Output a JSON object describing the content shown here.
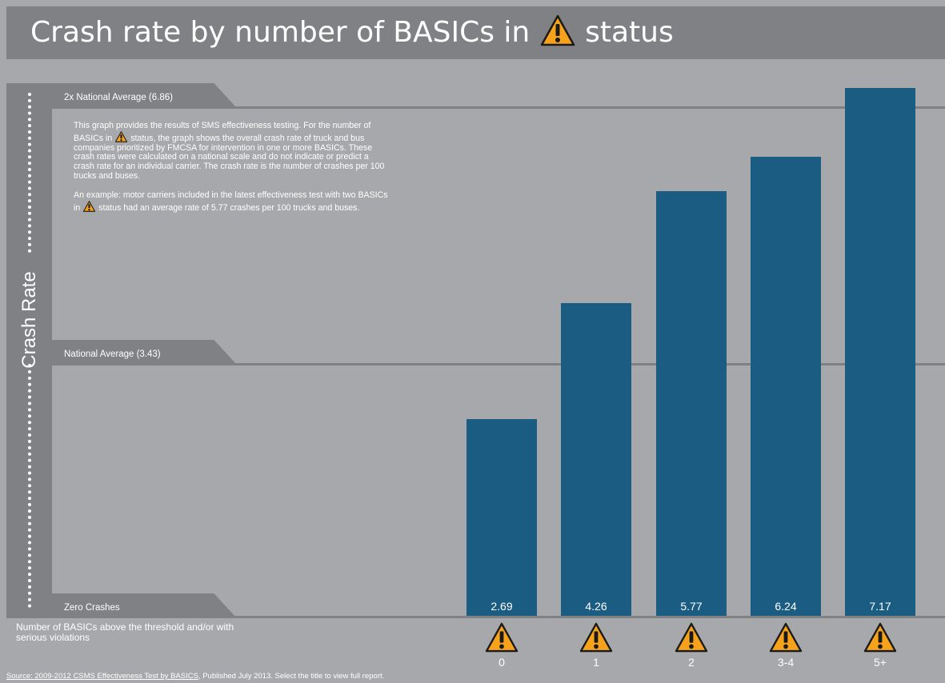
{
  "page_title_before": "Crash rate by number of BASICs in",
  "page_title_after": "status",
  "description_p1_before": "This graph provides the results of SMS effectiveness testing. For the number of BASICs in",
  "description_p1_after": "status, the graph shows the overall crash rate of truck and bus companies prioritized by FMCSA for intervention in one or more BASICs. These crash rates were calculated on a national scale and do not indicate or predict a crash rate for an individual carrier. The crash rate is the number of crashes per 100 trucks and buses.",
  "description_p2_before": "An example: motor carriers included in the latest effectiveness test with two BASICs in",
  "description_p2_after": "status had an average rate of 5.77 crashes per 100 trucks and buses.",
  "source_link": "Source: 2009-2012 CSMS Effectiveness Test by BASICS",
  "source_rest": ", Published July 2013. Select the title to view full report.",
  "colors": {
    "background": "#a7a8ab",
    "band": "#808184",
    "bar": "#1b5c82",
    "warning": "#f6a21b"
  },
  "icons": {
    "title": "warning-triangle-icon",
    "category": "warning-triangle-icon"
  },
  "chart_data": {
    "type": "bar",
    "title": "",
    "ylabel": "Crash Rate",
    "xlabel": "Number of BASICs above the threshold and/or with serious violations",
    "categories": [
      "0",
      "1",
      "2",
      "3-4",
      "5+"
    ],
    "values": [
      2.69,
      4.26,
      5.77,
      6.24,
      7.17
    ],
    "value_labels": [
      "2.69",
      "4.26",
      "5.77",
      "6.24",
      "7.17"
    ],
    "ylim": [
      0,
      7.17
    ],
    "reference_lines": [
      {
        "label": "2x National Average (6.86)",
        "value": 6.86
      },
      {
        "label": "National Average (3.43)",
        "value": 3.43
      },
      {
        "label": "Zero Crashes",
        "value": 0
      }
    ],
    "grid": false,
    "legend": "none"
  }
}
